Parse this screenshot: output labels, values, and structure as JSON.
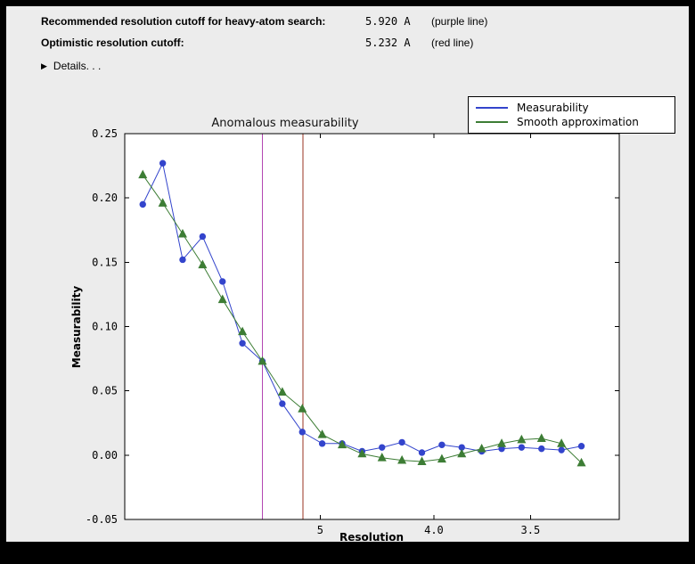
{
  "window": {
    "frame_color": "#000000",
    "panel_background": "#ececec"
  },
  "header": {
    "recommended": {
      "label": "Recommended resolution cutoff for heavy-atom search:",
      "value": "5.920 A",
      "note": "(purple line)"
    },
    "optimistic": {
      "label": "Optimistic resolution cutoff:",
      "value": "5.232 A",
      "note": "(red line)"
    },
    "details_label": "Details. . ."
  },
  "icons": {
    "disclosure_triangle": "▶"
  },
  "chart_data": {
    "type": "line",
    "title": "Anomalous measurability",
    "xlabel": "Resolution",
    "ylabel": "Measurability",
    "x_units": "axis linear in 1/d^2, resolution (A) decreasing left to right",
    "xlim": [
      0.0013,
      0.0992
    ],
    "ylim": [
      -0.05,
      0.25
    ],
    "yticks": [
      0.25,
      0.2,
      0.15,
      0.1,
      0.05,
      0.0,
      -0.05
    ],
    "xticks": [
      {
        "pos": 0.04,
        "label": "5"
      },
      {
        "pos": 0.0625,
        "label": "4.0"
      },
      {
        "pos": 0.08163,
        "label": "3.5"
      }
    ],
    "x": [
      0.00487,
      0.00882,
      0.01276,
      0.01671,
      0.02066,
      0.0246,
      0.02855,
      0.0325,
      0.03645,
      0.04039,
      0.04434,
      0.04829,
      0.05223,
      0.05618,
      0.06013,
      0.06408,
      0.06802,
      0.07197,
      0.07592,
      0.07986,
      0.08381,
      0.08776,
      0.09171
    ],
    "series": [
      {
        "name": "Measurability",
        "color": "#3344cc",
        "marker": "circle",
        "values": [
          0.195,
          0.227,
          0.152,
          0.17,
          0.135,
          0.087,
          0.073,
          0.04,
          0.018,
          0.009,
          0.009,
          0.003,
          0.006,
          0.01,
          0.002,
          0.008,
          0.006,
          0.003,
          0.005,
          0.006,
          0.005,
          0.004,
          0.007
        ]
      },
      {
        "name": "Smooth approximation",
        "color": "#3d7d35",
        "marker": "triangle_up",
        "values": [
          0.218,
          0.196,
          0.172,
          0.148,
          0.121,
          0.096,
          0.073,
          0.049,
          0.036,
          0.016,
          0.008,
          0.001,
          -0.002,
          -0.004,
          -0.005,
          -0.003,
          0.001,
          0.005,
          0.009,
          0.012,
          0.013,
          0.009,
          -0.006
        ]
      }
    ],
    "vlines": [
      {
        "pos": 0.02853,
        "color": "#b346b3",
        "label": "purple line (5.920 A)"
      },
      {
        "pos": 0.03654,
        "color": "#993322",
        "label": "red line (5.232 A)"
      }
    ],
    "legend_position": "upper right"
  }
}
